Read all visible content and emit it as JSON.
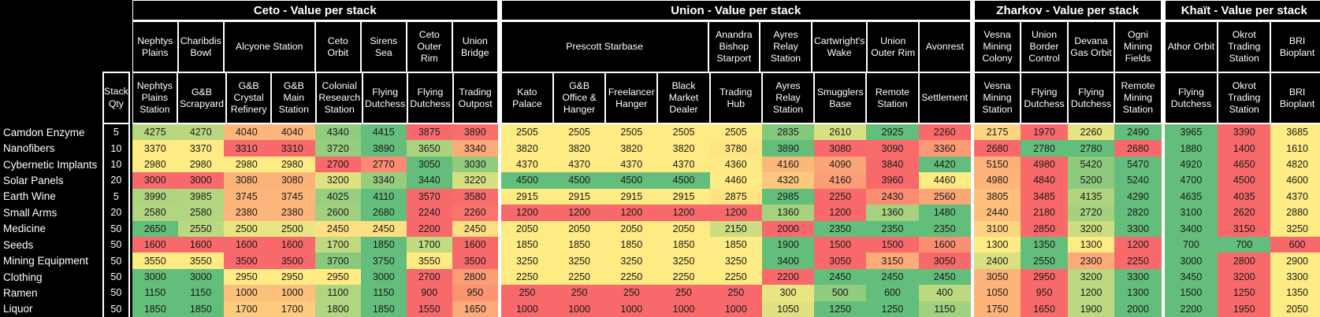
{
  "colors": {
    "background": "#000000",
    "border": "#FFFFFF",
    "header_text": "#FFFFFF",
    "cell_text": "#191919",
    "scale_min_red": "#F8696B",
    "scale_mid_yellow": "#FFEB84",
    "scale_max_green": "#63BE7B"
  },
  "chart_data": {
    "type": "heatmap",
    "stack_header": "Stack Qty",
    "color_scale": {
      "min": "#F8696B",
      "mid": "#FFEB84",
      "max": "#63BE7B",
      "rule": "3-color scale applied per commodity row within each system group; midpoint = 50th percentile"
    },
    "groups": [
      {
        "title": "Ceto - Value per stack",
        "locations": [
          {
            "label": "Nephtys Plains",
            "span": 1
          },
          {
            "label": "Charibdis Bowl",
            "span": 1
          },
          {
            "label": "Alcyone Station",
            "span": 2
          },
          {
            "label": "Ceto Orbit",
            "span": 1
          },
          {
            "label": "Sirens Sea",
            "span": 1
          },
          {
            "label": "Ceto Outer Rim",
            "span": 1
          },
          {
            "label": "Union Bridge",
            "span": 1
          }
        ],
        "stations": [
          "Nephtys Plains Station",
          "G&B Scrapyard",
          "G&B Crystal Refinery",
          "G&B Main Station",
          "Colonial Research Station",
          "Flying Dutchess",
          "Flying Dutchess",
          "Trading Outpost"
        ]
      },
      {
        "title": "Union - Value per stack",
        "locations": [
          {
            "label": "Prescott Starbase",
            "span": 4
          },
          {
            "label": "Anandra Bishop Starport",
            "span": 1
          },
          {
            "label": "Ayres Relay Station",
            "span": 1
          },
          {
            "label": "Cartwright's Wake",
            "span": 1
          },
          {
            "label": "Union Outer Rim",
            "span": 1
          },
          {
            "label": "Avonrest",
            "span": 1
          }
        ],
        "stations": [
          "Kato Palace",
          "G&B Office & Hanger",
          "Freelancer Hanger",
          "Black Market Dealer",
          "Trading Hub",
          "Ayres Relay Station",
          "Smugglers Base",
          "Remote Station",
          "Settlement"
        ]
      },
      {
        "title": "Zharkov - Value per stack",
        "locations": [
          {
            "label": "Vesna Mining Colony",
            "span": 1
          },
          {
            "label": "Union Border Control",
            "span": 1
          },
          {
            "label": "Devana Gas Orbit",
            "span": 1
          },
          {
            "label": "Ogni Mining Fields",
            "span": 1
          }
        ],
        "stations": [
          "Vesna Mining Station",
          "Flying Dutchess",
          "Flying Dutchess",
          "Remote Mining Station"
        ]
      },
      {
        "title": "Khaït - Value per stack",
        "locations": [
          {
            "label": "Athor Orbit",
            "span": 1
          },
          {
            "label": "Okrot Trading Station",
            "span": 1
          },
          {
            "label": "BRI Bioplant",
            "span": 1
          }
        ],
        "stations": [
          "Flying Dutchess",
          "Okrot Trading Station",
          "BRI Bioplant"
        ]
      }
    ],
    "rows": [
      {
        "commodity": "Camdon Enzyme",
        "stack_qty": 5,
        "values": [
          [
            4275,
            4270,
            4040,
            4040,
            4340,
            4415,
            3875,
            3890
          ],
          [
            2505,
            2505,
            2505,
            2505,
            2505,
            2835,
            2610,
            2925,
            2260
          ],
          [
            2175,
            1970,
            2260,
            2490
          ],
          [
            3965,
            3390,
            3685
          ]
        ]
      },
      {
        "commodity": "Nanofibers",
        "stack_qty": 10,
        "values": [
          [
            3370,
            3370,
            3310,
            3310,
            3720,
            3890,
            3650,
            3340
          ],
          [
            3820,
            3820,
            3820,
            3820,
            3780,
            3890,
            3080,
            3090,
            3360
          ],
          [
            2680,
            2780,
            2780,
            2680
          ],
          [
            1880,
            1400,
            1610
          ]
        ]
      },
      {
        "commodity": "Cybernetic Implants",
        "stack_qty": 10,
        "values": [
          [
            2980,
            2980,
            2980,
            2980,
            2700,
            2770,
            3050,
            3030
          ],
          [
            4370,
            4370,
            4370,
            4370,
            4360,
            4160,
            4090,
            3840,
            4420
          ],
          [
            5150,
            4980,
            5420,
            5470
          ],
          [
            4920,
            4650,
            4820
          ]
        ]
      },
      {
        "commodity": "Solar Panels",
        "stack_qty": 20,
        "values": [
          [
            3000,
            3000,
            3080,
            3080,
            3200,
            3340,
            3440,
            3220
          ],
          [
            4500,
            4500,
            4500,
            4500,
            4460,
            4320,
            4160,
            3960,
            4460
          ],
          [
            4980,
            4840,
            5200,
            5240
          ],
          [
            4700,
            4500,
            4600
          ]
        ]
      },
      {
        "commodity": "Earth Wine",
        "stack_qty": 5,
        "values": [
          [
            3990,
            3985,
            3745,
            3745,
            4025,
            4110,
            3570,
            3580
          ],
          [
            2915,
            2915,
            2915,
            2915,
            2875,
            2985,
            2250,
            2430,
            2560
          ],
          [
            3805,
            3485,
            4135,
            4290
          ],
          [
            4635,
            4035,
            4370
          ]
        ]
      },
      {
        "commodity": "Small Arms",
        "stack_qty": 20,
        "values": [
          [
            2580,
            2580,
            2380,
            2380,
            2600,
            2680,
            2240,
            2260
          ],
          [
            1200,
            1200,
            1200,
            1200,
            1200,
            1360,
            1200,
            1360,
            1480
          ],
          [
            2440,
            2180,
            2720,
            2820
          ],
          [
            3100,
            2620,
            2880
          ]
        ]
      },
      {
        "commodity": "Medicine",
        "stack_qty": 50,
        "values": [
          [
            2650,
            2550,
            2500,
            2500,
            2450,
            2450,
            2200,
            2450
          ],
          [
            2050,
            2050,
            2050,
            2050,
            2150,
            2000,
            2350,
            2350,
            2350
          ],
          [
            3100,
            2850,
            3200,
            3300
          ],
          [
            3400,
            3150,
            3250
          ]
        ]
      },
      {
        "commodity": "Seeds",
        "stack_qty": 50,
        "values": [
          [
            1600,
            1600,
            1600,
            1600,
            1700,
            1850,
            1700,
            1600
          ],
          [
            1850,
            1850,
            1850,
            1850,
            1850,
            1900,
            1500,
            1500,
            1600
          ],
          [
            1300,
            1350,
            1300,
            1200
          ],
          [
            700,
            700,
            600
          ]
        ]
      },
      {
        "commodity": "Mining Equipment",
        "stack_qty": 50,
        "values": [
          [
            3550,
            3550,
            3500,
            3500,
            3700,
            3750,
            3550,
            3500
          ],
          [
            3250,
            3250,
            3250,
            3250,
            3250,
            3400,
            3050,
            3150,
            3050
          ],
          [
            2400,
            2550,
            2300,
            2250
          ],
          [
            3000,
            2800,
            2900
          ]
        ]
      },
      {
        "commodity": "Clothing",
        "stack_qty": 50,
        "values": [
          [
            3000,
            3000,
            2950,
            2950,
            2950,
            3000,
            2700,
            2800
          ],
          [
            2250,
            2250,
            2250,
            2250,
            2250,
            2200,
            2450,
            2450,
            2450
          ],
          [
            3050,
            2950,
            3200,
            3300
          ],
          [
            3450,
            3200,
            3300
          ]
        ]
      },
      {
        "commodity": "Ramen",
        "stack_qty": 50,
        "values": [
          [
            1150,
            1150,
            1000,
            1000,
            1100,
            1150,
            900,
            950
          ],
          [
            250,
            250,
            250,
            250,
            250,
            300,
            500,
            600,
            400
          ],
          [
            1050,
            950,
            1200,
            1300
          ],
          [
            1500,
            1250,
            1350
          ]
        ]
      },
      {
        "commodity": "Liquor",
        "stack_qty": 50,
        "values": [
          [
            1850,
            1850,
            1700,
            1700,
            1800,
            1850,
            1550,
            1650
          ],
          [
            1000,
            1000,
            1000,
            1000,
            1000,
            1050,
            1250,
            1250,
            1150
          ],
          [
            1750,
            1650,
            1900,
            2000
          ],
          [
            2200,
            1950,
            2050
          ]
        ]
      }
    ]
  }
}
